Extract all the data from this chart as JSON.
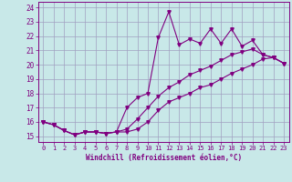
{
  "xlabel": "Windchill (Refroidissement éolien,°C)",
  "x": [
    0,
    1,
    2,
    3,
    4,
    5,
    6,
    7,
    8,
    9,
    10,
    11,
    12,
    13,
    14,
    15,
    16,
    17,
    18,
    19,
    20,
    21,
    22,
    23
  ],
  "line1": [
    16.0,
    15.8,
    15.4,
    15.1,
    15.3,
    15.3,
    15.2,
    15.3,
    17.0,
    17.7,
    18.0,
    21.9,
    23.7,
    21.4,
    21.8,
    21.5,
    22.5,
    21.5,
    22.5,
    21.3,
    21.7,
    20.7,
    20.5,
    20.1
  ],
  "line2": [
    16.0,
    15.8,
    15.4,
    15.1,
    15.3,
    15.3,
    15.2,
    15.3,
    15.3,
    15.5,
    16.0,
    16.8,
    17.4,
    17.7,
    18.0,
    18.4,
    18.6,
    19.0,
    19.4,
    19.7,
    20.0,
    20.4,
    20.5,
    20.1
  ],
  "line3": [
    16.0,
    15.8,
    15.4,
    15.1,
    15.3,
    15.3,
    15.2,
    15.3,
    15.5,
    16.2,
    17.0,
    17.8,
    18.4,
    18.8,
    19.3,
    19.6,
    19.9,
    20.3,
    20.7,
    20.9,
    21.1,
    20.7,
    20.5,
    20.1
  ],
  "line_color": "#800080",
  "bg_color": "#c8e8e8",
  "grid_color": "#a0a0c0",
  "ylim": [
    14.6,
    24.4
  ],
  "xlim": [
    -0.5,
    23.5
  ],
  "yticks": [
    15,
    16,
    17,
    18,
    19,
    20,
    21,
    22,
    23,
    24
  ],
  "xticks": [
    0,
    1,
    2,
    3,
    4,
    5,
    6,
    7,
    8,
    9,
    10,
    11,
    12,
    13,
    14,
    15,
    16,
    17,
    18,
    19,
    20,
    21,
    22,
    23
  ]
}
